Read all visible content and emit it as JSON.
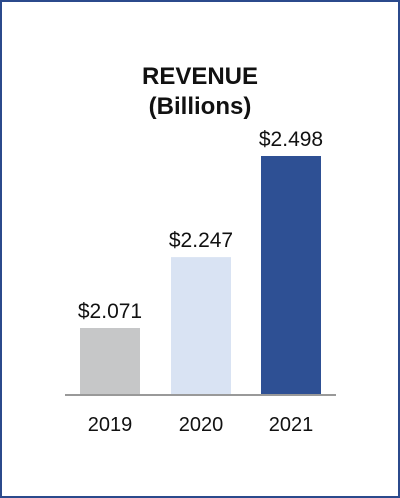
{
  "chart_data": {
    "type": "bar",
    "title": "REVENUE",
    "subtitle": "(Billions)",
    "categories": [
      "2019",
      "2020",
      "2021"
    ],
    "values": [
      2.071,
      2.247,
      2.498
    ],
    "value_labels": [
      "$2.071",
      "$2.247",
      "$2.498"
    ],
    "colors": [
      "#c6c7c8",
      "#d9e3f3",
      "#2e5094"
    ],
    "axis_color": "#999999",
    "border_color": "#2b4a8c",
    "grid": false,
    "legend": "none"
  }
}
